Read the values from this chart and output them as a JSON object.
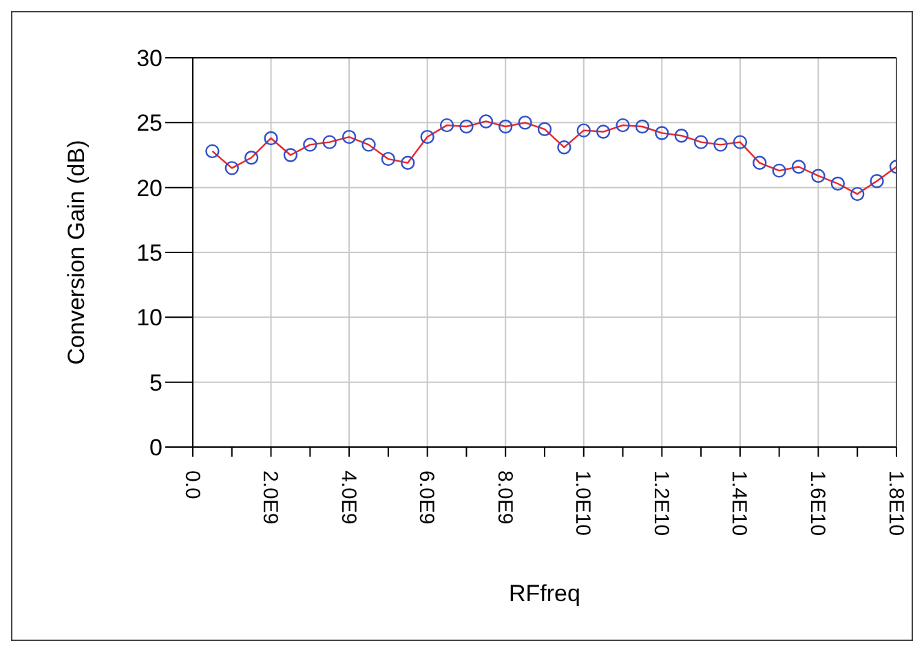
{
  "chart_data": {
    "type": "line",
    "xlabel": "RFfreq",
    "ylabel": "Conversion Gain (dB)",
    "x": [
      500000000.0,
      1000000000.0,
      1500000000.0,
      2000000000.0,
      2500000000.0,
      3000000000.0,
      3500000000.0,
      4000000000.0,
      4500000000.0,
      5000000000.0,
      5500000000.0,
      6000000000.0,
      6500000000.0,
      7000000000.0,
      7500000000.0,
      8000000000.0,
      8500000000.0,
      9000000000.0,
      9500000000.0,
      10000000000.0,
      10500000000.0,
      11000000000.0,
      11500000000.0,
      12000000000.0,
      12500000000.0,
      13000000000.0,
      13500000000.0,
      14000000000.0,
      14500000000.0,
      15000000000.0,
      15500000000.0,
      16000000000.0,
      16500000000.0,
      17000000000.0,
      17500000000.0,
      18000000000.0
    ],
    "series": [
      {
        "color": "#e8262b",
        "values": [
          22.8,
          21.5,
          22.3,
          23.8,
          22.5,
          23.3,
          23.5,
          23.9,
          23.3,
          22.2,
          21.9,
          23.9,
          24.8,
          24.7,
          25.1,
          24.7,
          25.0,
          24.5,
          23.1,
          24.4,
          24.3,
          24.8,
          24.7,
          24.2,
          24.0,
          23.5,
          23.3,
          23.5,
          21.9,
          21.3,
          21.6,
          20.9,
          20.3,
          19.5,
          20.5,
          21.6
        ]
      }
    ],
    "xlim": [
      0,
      18000000000.0
    ],
    "xticks": [
      {
        "value": 0,
        "label": "0.0"
      },
      {
        "value": 1000000000.0,
        "label": null
      },
      {
        "value": 2000000000.0,
        "label": "2.0E9"
      },
      {
        "value": 3000000000.0,
        "label": null
      },
      {
        "value": 4000000000.0,
        "label": "4.0E9"
      },
      {
        "value": 5000000000.0,
        "label": null
      },
      {
        "value": 6000000000.0,
        "label": "6.0E9"
      },
      {
        "value": 7000000000.0,
        "label": null
      },
      {
        "value": 8000000000.0,
        "label": "8.0E9"
      },
      {
        "value": 9000000000.0,
        "label": null
      },
      {
        "value": 10000000000.0,
        "label": "1.0E10"
      },
      {
        "value": 11000000000.0,
        "label": null
      },
      {
        "value": 12000000000.0,
        "label": "1.2E10"
      },
      {
        "value": 13000000000.0,
        "label": null
      },
      {
        "value": 14000000000.0,
        "label": "1.4E10"
      },
      {
        "value": 15000000000.0,
        "label": null
      },
      {
        "value": 16000000000.0,
        "label": "1.6E10"
      },
      {
        "value": 17000000000.0,
        "label": null
      },
      {
        "value": 18000000000.0,
        "label": "1.8E10"
      }
    ],
    "ylim": [
      0,
      30
    ],
    "yticks": [
      0,
      5,
      10,
      15,
      20,
      25,
      30
    ],
    "grid": true,
    "marker": "circle",
    "line_style": "solid"
  }
}
